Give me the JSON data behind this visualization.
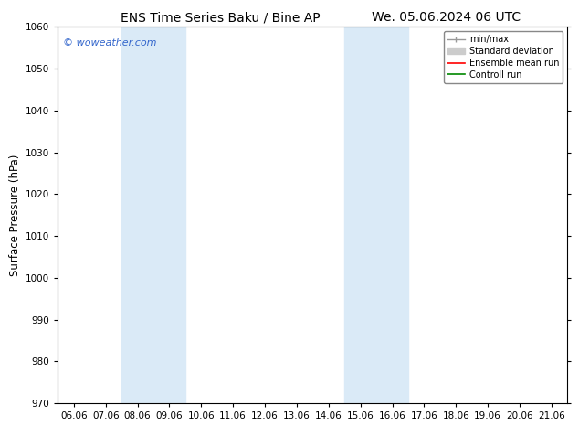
{
  "title_left": "ENS Time Series Baku / Bine AP",
  "title_right": "We. 05.06.2024 06 UTC",
  "ylabel": "Surface Pressure (hPa)",
  "ylim": [
    970,
    1060
  ],
  "yticks": [
    970,
    980,
    990,
    1000,
    1010,
    1020,
    1030,
    1040,
    1050,
    1060
  ],
  "x_labels": [
    "06.06",
    "07.06",
    "08.06",
    "09.06",
    "10.06",
    "11.06",
    "12.06",
    "13.06",
    "14.06",
    "15.06",
    "16.06",
    "17.06",
    "18.06",
    "19.06",
    "20.06",
    "21.06"
  ],
  "x_positions": [
    0,
    1,
    2,
    3,
    4,
    5,
    6,
    7,
    8,
    9,
    10,
    11,
    12,
    13,
    14,
    15
  ],
  "shaded_bands": [
    {
      "xmin": 2,
      "xmax": 4
    },
    {
      "xmin": 9,
      "xmax": 11
    }
  ],
  "shade_color": "#daeaf7",
  "watermark": "© woweather.com",
  "watermark_color": "#3366cc",
  "background_color": "#ffffff",
  "plot_bg_color": "#ffffff",
  "spine_color": "#000000",
  "tick_color": "#000000",
  "legend_min_max_color": "#999999",
  "legend_std_color": "#cccccc",
  "legend_mean_color": "#ff0000",
  "legend_ctrl_color": "#008800",
  "title_fontsize": 10,
  "tick_fontsize": 7.5,
  "ylabel_fontsize": 8.5,
  "watermark_fontsize": 8,
  "legend_fontsize": 7
}
